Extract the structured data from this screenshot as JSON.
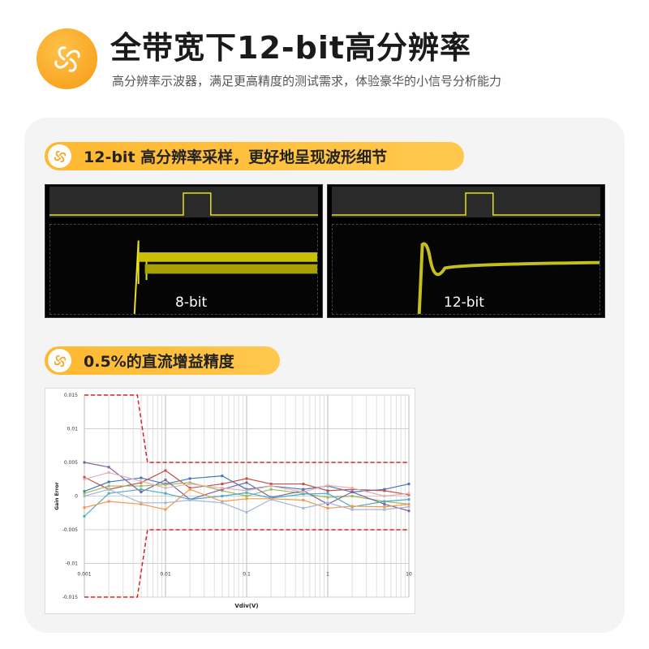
{
  "header": {
    "title": "全带宽下12-bit高分辨率",
    "subtitle": "高分辨率示波器，满足更高精度的测试需求，体验豪华的小信号分析能力",
    "icon": "swirl-fan-icon",
    "accent": "#f7a21b"
  },
  "section1": {
    "label": "12-bit 高分辨率采样，更好地呈现波形细节",
    "scopes": [
      {
        "label": "8-bit"
      },
      {
        "label": "12-bit"
      }
    ],
    "trace_color": "#e8e020"
  },
  "section2": {
    "label": "0.5%的直流增益精度"
  },
  "chart_data": {
    "type": "line",
    "xscale": "log",
    "xlabel": "Vdiv(V)",
    "ylabel": "Gain Error",
    "xlim": [
      0.001,
      10
    ],
    "ylim": [
      -0.015,
      0.015
    ],
    "grid": true,
    "xticks": [
      "0.001",
      "0.01",
      "0.1",
      "1",
      "10"
    ],
    "yticks": [
      "0.015",
      "0.01",
      "0.005",
      "0",
      "-0.005",
      "-0.01",
      "-0.015"
    ],
    "limits": {
      "color": "#e02020",
      "upper": {
        "x": [
          0.001,
          0.0045,
          0.006,
          10
        ],
        "y": [
          0.015,
          0.015,
          0.005,
          0.005
        ]
      },
      "lower": {
        "x": [
          0.001,
          0.0045,
          0.006,
          10
        ],
        "y": [
          -0.015,
          -0.015,
          -0.005,
          -0.005
        ]
      }
    },
    "x": [
      0.001,
      0.002,
      0.005,
      0.01,
      0.02,
      0.05,
      0.1,
      0.2,
      0.5,
      1,
      2,
      5,
      10
    ],
    "series": [
      {
        "color": "#3f78c0",
        "values": [
          0.0007,
          0.0021,
          0.0027,
          0.0018,
          0.0026,
          0.003,
          0.001,
          0.0015,
          0.001,
          0.0015,
          0.0006,
          0.001,
          0.0018
        ]
      },
      {
        "color": "#c0504d",
        "values": [
          0.0028,
          0.001,
          0.002,
          0.0038,
          0.0012,
          0.0018,
          0.0026,
          0.0018,
          0.0018,
          0.0008,
          0.001,
          0.0008,
          0.0002
        ]
      },
      {
        "color": "#9bbb59",
        "values": [
          0.0004,
          0.0015,
          0.0015,
          0.0017,
          0.002,
          0.0008,
          0.0,
          0.001,
          0.0004,
          -0.0002,
          0.0,
          -0.0008,
          -0.0012
        ]
      },
      {
        "color": "#8064a2",
        "values": [
          0.005,
          0.0043,
          0.0006,
          0.0024,
          -0.0005,
          0.001,
          0.002,
          -0.0002,
          0.0008,
          -0.0012,
          0.0006,
          -0.0012,
          -0.0022
        ]
      },
      {
        "color": "#4bacc6",
        "values": [
          -0.003,
          0.0004,
          0.001,
          0.0004,
          -0.0005,
          0.0,
          0.0005,
          -0.0003,
          0.0003,
          0.0004,
          -0.0016,
          -0.0008,
          -0.0005
        ]
      },
      {
        "color": "#f79646",
        "values": [
          -0.0017,
          -0.0008,
          -0.0012,
          -0.002,
          0.001,
          -0.0008,
          -0.0004,
          -0.0004,
          -0.0006,
          -0.0018,
          -0.0015,
          -0.0016,
          -0.0012
        ]
      },
      {
        "color": "#a5b6d8",
        "values": [
          0.0,
          0.001,
          -0.001,
          -0.001,
          -0.0006,
          -0.001,
          -0.0024,
          -0.0005,
          -0.0018,
          -0.001,
          -0.002,
          -0.002,
          -0.0016
        ]
      },
      {
        "color": "#e6b0b0",
        "values": [
          0.0025,
          0.0035,
          0.0022,
          0.0012,
          0.0018,
          0.0012,
          0.0008,
          0.0015,
          0.0006,
          0.0016,
          0.0012,
          0.0,
          0.0004
        ]
      }
    ]
  }
}
